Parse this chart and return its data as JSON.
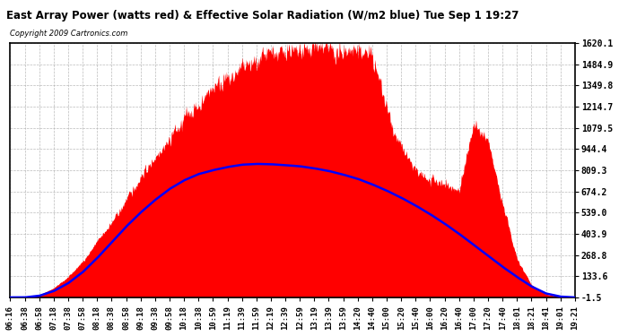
{
  "title": "East Array Power (watts red) & Effective Solar Radiation (W/m2 blue) Tue Sep 1 19:27",
  "copyright": "Copyright 2009 Cartronics.com",
  "bg_color": "#ffffff",
  "plot_bg_color": "#ffffff",
  "grid_color": "#aaaaaa",
  "y_ticks": [
    -1.5,
    133.6,
    268.8,
    403.9,
    539.0,
    674.2,
    809.3,
    944.4,
    1079.5,
    1214.7,
    1349.8,
    1484.9,
    1620.1
  ],
  "ylim": [
    -1.5,
    1620.1
  ],
  "red_color": "#ff0000",
  "blue_color": "#0000ff",
  "time_labels": [
    "06:16",
    "06:38",
    "06:58",
    "07:18",
    "07:38",
    "07:58",
    "08:18",
    "08:38",
    "08:58",
    "09:18",
    "09:38",
    "09:58",
    "10:18",
    "10:38",
    "10:59",
    "11:19",
    "11:39",
    "11:59",
    "12:19",
    "12:39",
    "12:59",
    "13:19",
    "13:39",
    "13:59",
    "14:20",
    "14:40",
    "15:00",
    "15:20",
    "15:40",
    "16:00",
    "16:20",
    "16:40",
    "17:00",
    "17:20",
    "17:40",
    "18:01",
    "18:21",
    "18:41",
    "19:01",
    "19:21"
  ],
  "red_values": [
    0,
    0,
    15,
    60,
    130,
    230,
    350,
    480,
    620,
    760,
    890,
    1010,
    1130,
    1230,
    1320,
    1400,
    1460,
    1510,
    1550,
    1570,
    1580,
    1590,
    1585,
    1575,
    1560,
    1540,
    1200,
    950,
    800,
    750,
    720,
    680,
    1100,
    980,
    600,
    250,
    80,
    20,
    5,
    0
  ],
  "blue_values": [
    0,
    0,
    10,
    40,
    90,
    160,
    250,
    350,
    450,
    540,
    620,
    690,
    745,
    785,
    810,
    830,
    845,
    850,
    848,
    842,
    835,
    822,
    805,
    782,
    755,
    720,
    680,
    635,
    585,
    530,
    470,
    405,
    335,
    265,
    195,
    130,
    70,
    25,
    5,
    0
  ]
}
